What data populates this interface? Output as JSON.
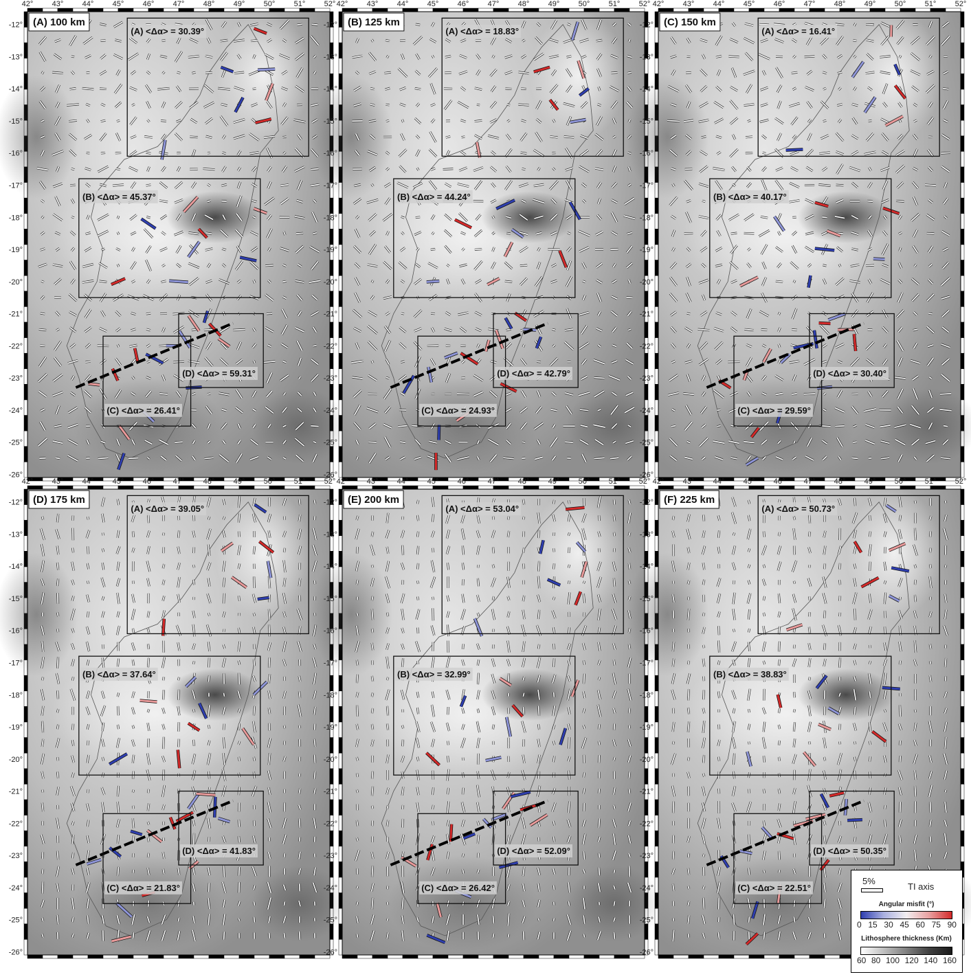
{
  "figure": {
    "lon_ticks": [
      "42°",
      "43°",
      "44°",
      "45°",
      "46°",
      "47°",
      "48°",
      "49°",
      "50°",
      "51°",
      "52°"
    ],
    "lat_ticks": [
      "-12°",
      "-13°",
      "-14°",
      "-15°",
      "-16°",
      "-17°",
      "-18°",
      "-19°",
      "-20°",
      "-21°",
      "-22°",
      "-23°",
      "-24°",
      "-25°",
      "-26°"
    ],
    "panels": [
      {
        "id": "A",
        "title": "(A) 100 km",
        "boxes": [
          {
            "id": "A",
            "label": "(A) <Δα> = 30.39°"
          },
          {
            "id": "B",
            "label": "(B) <Δα> = 45.37°"
          },
          {
            "id": "C",
            "label": "(C) <Δα> = 26.41°"
          },
          {
            "id": "D",
            "label": "(D) <Δα> = 59.31°"
          }
        ]
      },
      {
        "id": "B",
        "title": "(B) 125 km",
        "boxes": [
          {
            "id": "A",
            "label": "(A) <Δα> = 18.83°"
          },
          {
            "id": "B",
            "label": "(B) <Δα> = 44.24°"
          },
          {
            "id": "C",
            "label": "(C) <Δα> = 24.93°"
          },
          {
            "id": "D",
            "label": "(D) <Δα> = 42.79°"
          }
        ]
      },
      {
        "id": "C",
        "title": "(C) 150 km",
        "boxes": [
          {
            "id": "A",
            "label": "(A) <Δα> = 16.41°"
          },
          {
            "id": "B",
            "label": "(B) <Δα> = 40.17°"
          },
          {
            "id": "C",
            "label": "(C) <Δα> = 29.59°"
          },
          {
            "id": "D",
            "label": "(D) <Δα> = 30.40°"
          }
        ]
      },
      {
        "id": "D",
        "title": "(D) 175 km",
        "boxes": [
          {
            "id": "A",
            "label": "(A) <Δα> = 39.05°"
          },
          {
            "id": "B",
            "label": "(B) <Δα> = 37.64°"
          },
          {
            "id": "C",
            "label": "(C) <Δα> = 21.83°"
          },
          {
            "id": "D",
            "label": "(D) <Δα> = 41.83°"
          }
        ]
      },
      {
        "id": "E",
        "title": "(E) 200 km",
        "boxes": [
          {
            "id": "A",
            "label": "(A) <Δα> = 53.04°"
          },
          {
            "id": "B",
            "label": "(B) <Δα> = 32.99°"
          },
          {
            "id": "C",
            "label": "(C) <Δα> = 26.42°"
          },
          {
            "id": "D",
            "label": "(D) <Δα> = 52.09°"
          }
        ]
      },
      {
        "id": "F",
        "title": "(F) 225 km",
        "boxes": [
          {
            "id": "A",
            "label": "(A) <Δα> = 50.73°"
          },
          {
            "id": "B",
            "label": "(B) <Δα> = 38.83°"
          },
          {
            "id": "C",
            "label": "(C) <Δα> = 22.51°"
          },
          {
            "id": "D",
            "label": "(D) <Δα> = 50.35°"
          }
        ]
      }
    ]
  },
  "legend": {
    "scale_label": "5%",
    "tiaxis_label": "TI axis",
    "misfit_title": "Angular misfit (°)",
    "misfit_ticks": [
      "0",
      "15",
      "30",
      "45",
      "60",
      "75",
      "90"
    ],
    "thickness_title": "Lithosphere thickness (Km)",
    "thickness_ticks": [
      "60",
      "80",
      "100",
      "120",
      "140",
      "160"
    ],
    "colors": {
      "misfit_low": "#2f3fb0",
      "misfit_mid": "#f2eef0",
      "misfit_high": "#d42a2a",
      "thick_low": "#ffffff",
      "thick_high": "#1a1a1a"
    }
  }
}
